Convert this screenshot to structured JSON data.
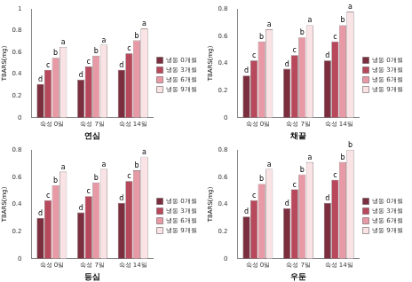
{
  "chart_data": [
    {
      "type": "bar",
      "x_label": "연심",
      "y_label": "TBARS(mg)",
      "categories": [
        "숙성 0일",
        "숙성 7일",
        "숙성 14일"
      ],
      "series": [
        {
          "name": "냉동 0개월",
          "color": "#7a2e3e",
          "values": [
            0.31,
            0.35,
            0.44
          ],
          "letters": [
            "d",
            "d",
            "d"
          ]
        },
        {
          "name": "냉동 3개월",
          "color": "#b8485c",
          "values": [
            0.44,
            0.47,
            0.59
          ],
          "letters": [
            "c",
            "c",
            "c"
          ]
        },
        {
          "name": "냉동 6개월",
          "color": "#e79aa6",
          "values": [
            0.55,
            0.57,
            0.71
          ],
          "letters": [
            "b",
            "b",
            "b"
          ]
        },
        {
          "name": "냉동 9개월",
          "color": "#f9e3e5",
          "values": [
            0.65,
            0.67,
            0.82
          ],
          "letters": [
            "a",
            "a",
            "a"
          ]
        }
      ],
      "ylim": [
        0,
        1
      ],
      "yticks": [
        0,
        0.2,
        0.4,
        0.6,
        0.8,
        1
      ],
      "grid": false,
      "legend": "right"
    },
    {
      "type": "bar",
      "x_label": "채끝",
      "y_label": "TBARS(mg)",
      "categories": [
        "숙성 0일",
        "숙성 7일",
        "숙성 14일"
      ],
      "series": [
        {
          "name": "냉동 0개월",
          "color": "#7a2e3e",
          "values": [
            0.31,
            0.36,
            0.42
          ],
          "letters": [
            "d",
            "d",
            "d"
          ]
        },
        {
          "name": "냉동 3개월",
          "color": "#b8485c",
          "values": [
            0.42,
            0.46,
            0.56
          ],
          "letters": [
            "c",
            "c",
            "c"
          ]
        },
        {
          "name": "냉동 6개월",
          "color": "#e79aa6",
          "values": [
            0.56,
            0.59,
            0.68
          ],
          "letters": [
            "b",
            "b",
            "b"
          ]
        },
        {
          "name": "냉동 9개월",
          "color": "#f9e3e5",
          "values": [
            0.65,
            0.68,
            0.78
          ],
          "letters": [
            "a",
            "a",
            "a"
          ]
        }
      ],
      "ylim": [
        0,
        0.8
      ],
      "yticks": [
        0,
        0.2,
        0.4,
        0.6,
        0.8
      ],
      "grid": false,
      "legend": "right"
    },
    {
      "type": "bar",
      "x_label": "등심",
      "y_label": "TBARS(mg)",
      "categories": [
        "숙성 0일",
        "숙성 7일",
        "숙성 14일"
      ],
      "series": [
        {
          "name": "냉동 0개월",
          "color": "#7a2e3e",
          "values": [
            0.3,
            0.34,
            0.41
          ],
          "letters": [
            "d",
            "d",
            "d"
          ]
        },
        {
          "name": "냉동 3개월",
          "color": "#b8485c",
          "values": [
            0.43,
            0.46,
            0.57
          ],
          "letters": [
            "c",
            "c",
            "c"
          ]
        },
        {
          "name": "냉동 6개월",
          "color": "#e79aa6",
          "values": [
            0.54,
            0.56,
            0.65
          ],
          "letters": [
            "b",
            "b",
            "b"
          ]
        },
        {
          "name": "냉동 9개월",
          "color": "#f9e3e5",
          "values": [
            0.64,
            0.66,
            0.75
          ],
          "letters": [
            "a",
            "a",
            "a"
          ]
        }
      ],
      "ylim": [
        0,
        0.8
      ],
      "yticks": [
        0,
        0.2,
        0.4,
        0.6,
        0.8
      ],
      "grid": false,
      "legend": "right"
    },
    {
      "type": "bar",
      "x_label": "우둔",
      "y_label": "TBARS(mg)",
      "categories": [
        "숙성 0일",
        "숙성 7일",
        "숙성 14일"
      ],
      "series": [
        {
          "name": "냉동 0개월",
          "color": "#7a2e3e",
          "values": [
            0.31,
            0.37,
            0.41
          ],
          "letters": [
            "d",
            "d",
            "d"
          ]
        },
        {
          "name": "냉동 3개월",
          "color": "#b8485c",
          "values": [
            0.43,
            0.51,
            0.58
          ],
          "letters": [
            "c",
            "c",
            "c"
          ]
        },
        {
          "name": "냉동 6개월",
          "color": "#e79aa6",
          "values": [
            0.55,
            0.62,
            0.71
          ],
          "letters": [
            "b",
            "b",
            "b"
          ]
        },
        {
          "name": "냉동 9개월",
          "color": "#f9e3e5",
          "values": [
            0.66,
            0.71,
            0.8
          ],
          "letters": [
            "a",
            "a",
            "b"
          ]
        }
      ],
      "ylim": [
        0,
        0.8
      ],
      "yticks": [
        0,
        0.2,
        0.4,
        0.6,
        0.8
      ],
      "grid": false,
      "legend": "right"
    }
  ]
}
